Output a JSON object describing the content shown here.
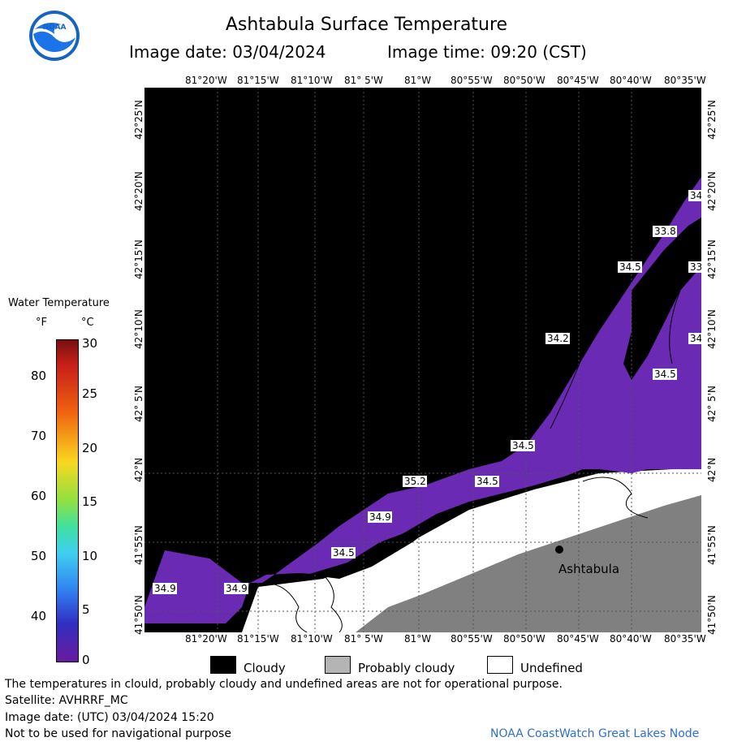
{
  "header": {
    "title": "Ashtabula Surface Temperature",
    "image_date": "Image date: 03/04/2024",
    "image_time": "Image time: 09:20 (CST)"
  },
  "map": {
    "lon_ticks": [
      "81°20'W",
      "81°15'W",
      "81°10'W",
      "81° 5'W",
      "81°W",
      "80°55'W",
      "80°50'W",
      "80°45'W",
      "80°40'W",
      "80°35'W"
    ],
    "lat_ticks": [
      "41°50'N",
      "41°55'N",
      "42°N",
      "42° 5'N",
      "42°10'N",
      "42°15'N",
      "42°20'N",
      "42°25'N"
    ],
    "city": "Ashtabula",
    "contour_labels": [
      "34.9",
      "34.9",
      "34.5",
      "34.9",
      "35.2",
      "34.5",
      "34.5",
      "34.2",
      "34.5",
      "33.8",
      "34",
      "33",
      "34",
      "34.5"
    ],
    "colors": {
      "cloud": "#000000",
      "water": "#6a2ab4",
      "land": "#808080",
      "undefined": "#ffffff"
    }
  },
  "legend": {
    "title": "Water Temperature",
    "unit_f": "°F",
    "unit_c": "°C",
    "f_ticks": [
      "80",
      "70",
      "60",
      "50",
      "40"
    ],
    "c_ticks": [
      "30",
      "25",
      "20",
      "15",
      "10",
      "5",
      "0"
    ]
  },
  "key": {
    "cloudy": "Cloudy",
    "probably_cloudy": "Probably cloudy",
    "undefined": "Undefined"
  },
  "footer": {
    "line1": "The temperatures in clould, probably cloudy and undefined areas are not for operational purpose.",
    "line2": "Satellite: AVHRRF_MC",
    "line3": "Image date: (UTC) 03/04/2024  15:20",
    "line4": "Not to be used for navigational purpose",
    "node": "NOAA CoastWatch Great Lakes Node"
  }
}
